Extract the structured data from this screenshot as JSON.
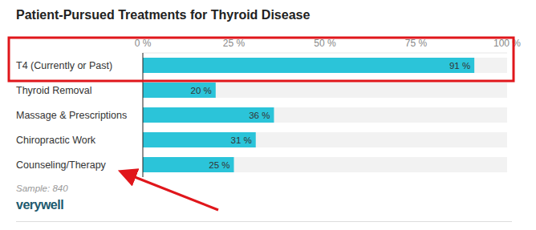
{
  "chart_data": {
    "type": "bar",
    "title": "Patient-Pursued Treatments for Thyroid Disease",
    "orientation": "horizontal",
    "categories": [
      "T4 (Currently or Past)",
      "Thyroid Removal",
      "Massage & Prescriptions",
      "Chiropractic Work",
      "Counseling/Therapy"
    ],
    "values": [
      91,
      20,
      36,
      31,
      25
    ],
    "value_labels": [
      "91 %",
      "20 %",
      "36 %",
      "31 %",
      "25 %"
    ],
    "color": "#2bc4d9",
    "xlim": [
      0,
      100
    ],
    "xticks": [
      {
        "value": 0,
        "label": "0 %"
      },
      {
        "value": 25,
        "label": "25 %"
      },
      {
        "value": 50,
        "label": "50 %"
      },
      {
        "value": 75,
        "label": "75 %"
      },
      {
        "value": 100,
        "label": "100 %"
      }
    ],
    "grid": false,
    "data_labels": true,
    "annotations": [
      "Sample: 840",
      "verywell"
    ]
  }
}
